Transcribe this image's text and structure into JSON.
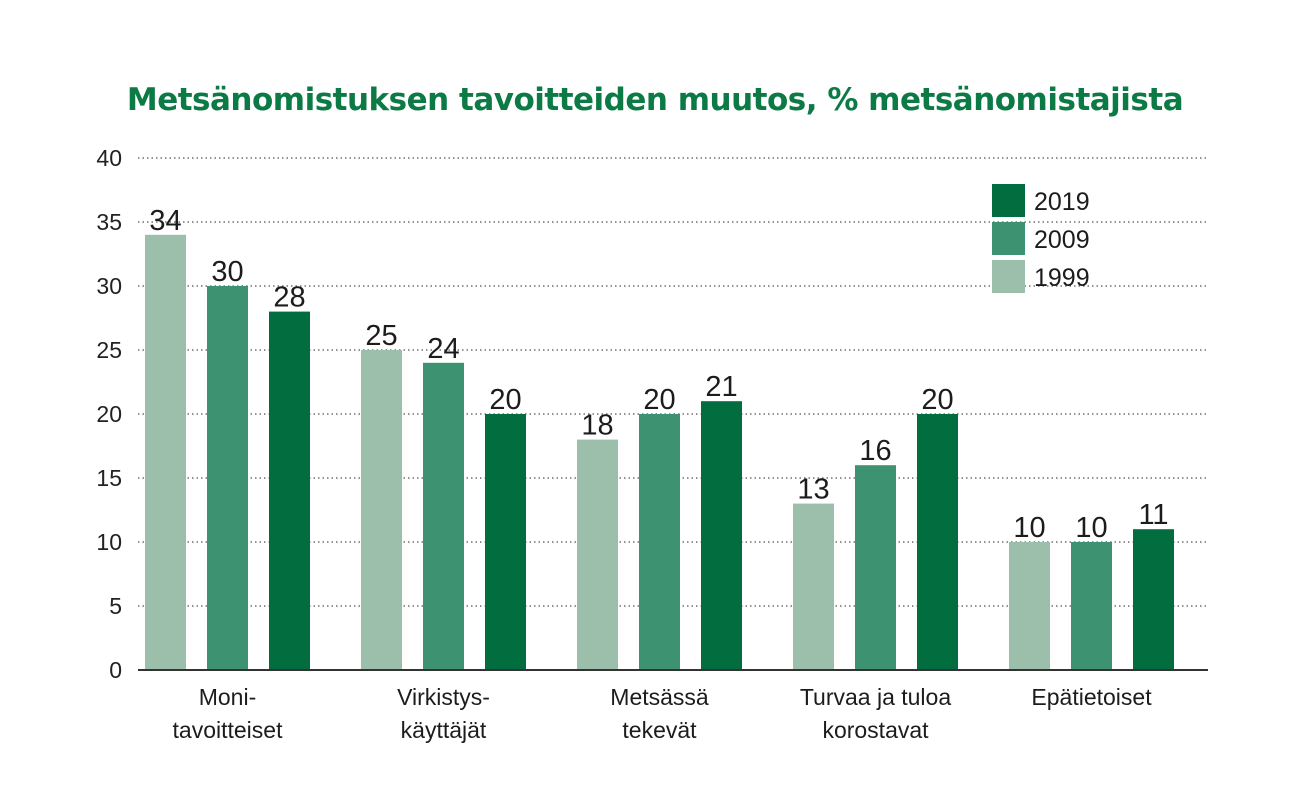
{
  "chart_data": {
    "type": "bar",
    "title": "Metsänomistuksen tavoitteiden muutos, % metsänomistajista",
    "categories": [
      [
        "Moni-",
        "tavoitteiset"
      ],
      [
        "Virkistys-",
        "käyttäjät"
      ],
      [
        "Metsässä",
        "tekevät"
      ],
      [
        "Turvaa ja tuloa",
        "korostavat"
      ],
      [
        "Epätietoiset"
      ]
    ],
    "series": [
      {
        "name": "1999",
        "color": "#9bbfaa",
        "values": [
          34,
          25,
          18,
          13,
          10
        ]
      },
      {
        "name": "2009",
        "color": "#3d9272",
        "values": [
          30,
          24,
          20,
          16,
          10
        ]
      },
      {
        "name": "2019",
        "color": "#026e40",
        "values": [
          28,
          20,
          21,
          20,
          11
        ]
      }
    ],
    "ylim": [
      0,
      40
    ],
    "yticks": [
      0,
      5,
      10,
      15,
      20,
      25,
      30,
      35,
      40
    ],
    "grid": "dotted horizontal",
    "legend_position": "top-right",
    "legend_order": [
      "2019",
      "2009",
      "1999"
    ]
  }
}
